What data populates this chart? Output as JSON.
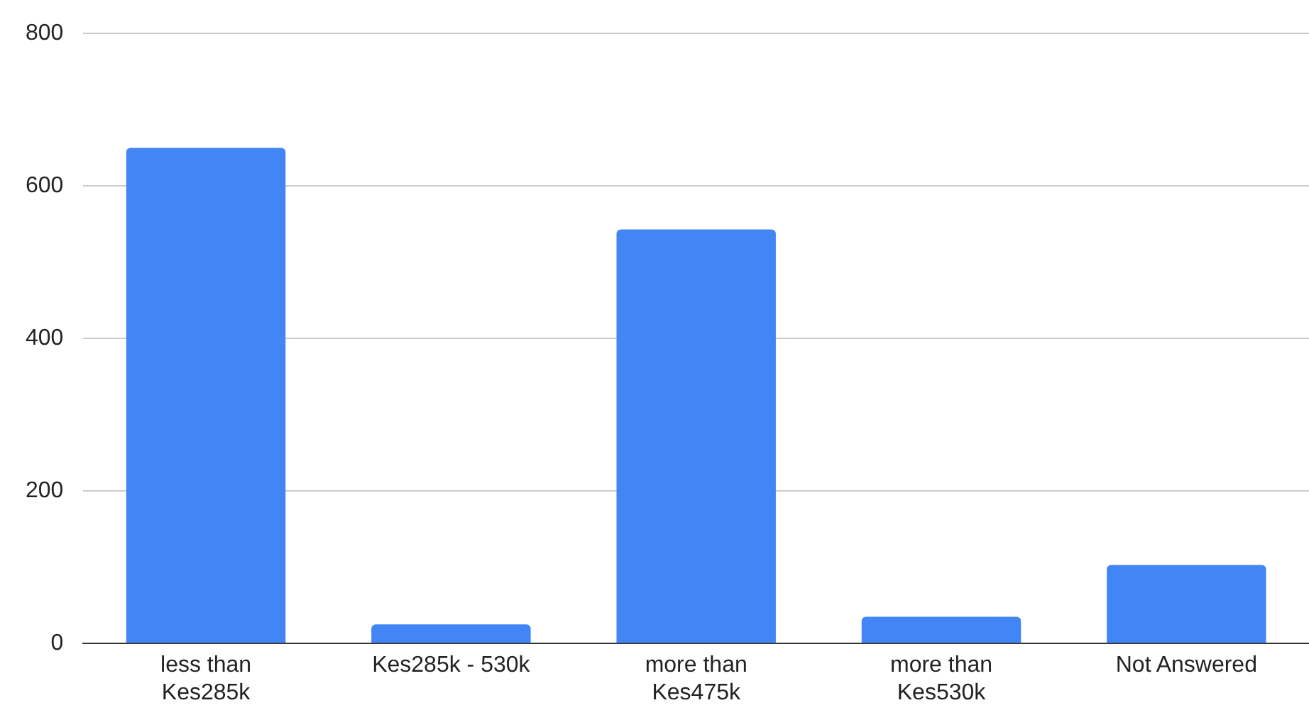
{
  "chart_data": {
    "type": "bar",
    "categories": [
      "less than Kes285k",
      "Kes285k - 530k",
      "more than Kes475k",
      "more than Kes530k",
      "Not Answered"
    ],
    "values": [
      650,
      25,
      543,
      35,
      103
    ],
    "color": "#4285f4",
    "ylim": [
      0,
      800
    ],
    "yticks": [
      0,
      200,
      400,
      600,
      800
    ],
    "grid": "y"
  }
}
